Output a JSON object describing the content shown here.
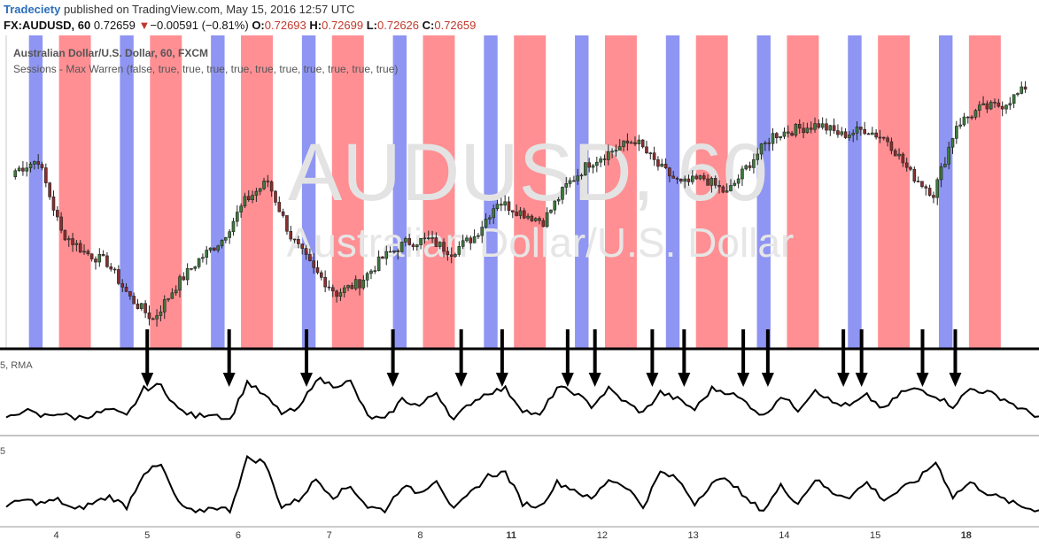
{
  "header": {
    "brand": "Tradeciety",
    "published_text": "published on TradingView.com, May 15, 2016 12:57 UTC",
    "symbol": "FX:AUDUSD, 60",
    "last": "0.72659",
    "change": "−0.00591 (−0.81%)",
    "open_label": "O:",
    "open": "0.72693",
    "high_label": "H:",
    "high": "0.72699",
    "low_label": "L:",
    "low": "0.72626",
    "close_label": "C:",
    "close": "0.72659"
  },
  "chart_data": [
    {
      "type": "candlestick",
      "title": "Australian Dollar/U.S. Dollar, 60, FXCM",
      "subtitle": "Sessions - Max Warren (false, true, true, true, true, true, true, true, true, true, true)",
      "watermark_symbol": "AUDUSD, 60",
      "watermark_name": "Australian Dollar/U.S. Dollar",
      "ylim": [
        0.723,
        0.741
      ],
      "x_ticks": [
        "4",
        "5",
        "6",
        "7",
        "8",
        "11",
        "12",
        "13",
        "14",
        "15",
        "18"
      ],
      "x_tick_pos": [
        0.3,
        1.3,
        2.3,
        3.3,
        4.3,
        5.3,
        6.3,
        7.3,
        8.3,
        9.3,
        10.3
      ],
      "xlim": [
        -0.25,
        11.1
      ],
      "session_colors": {
        "asia": "#7a82f0",
        "london": "#ff7b80"
      },
      "sessions_per_day": [
        {
          "type": "asia",
          "start": 0.0,
          "end": 0.15
        },
        {
          "type": "london",
          "start": 0.33,
          "end": 0.68
        }
      ],
      "anchor_closes": [
        0.7345,
        0.7352,
        0.7305,
        0.7292,
        0.7285,
        0.7262,
        0.7248,
        0.727,
        0.7287,
        0.73,
        0.7325,
        0.7338,
        0.7302,
        0.728,
        0.7265,
        0.7272,
        0.7288,
        0.7298,
        0.73,
        0.7292,
        0.7302,
        0.7325,
        0.7318,
        0.7312,
        0.7335,
        0.735,
        0.7358,
        0.7365,
        0.7348,
        0.7336,
        0.734,
        0.733,
        0.735,
        0.7368,
        0.7372,
        0.7375,
        0.7368,
        0.7372,
        0.7365,
        0.7343,
        0.733,
        0.7375,
        0.7385,
        0.7388,
        0.7398
      ],
      "arrow_positions": [
        1.3,
        2.2,
        3.05,
        4.0,
        4.75,
        5.2,
        5.92,
        6.22,
        6.85,
        7.2,
        7.85,
        8.12,
        8.95,
        9.15,
        9.82,
        10.18
      ]
    },
    {
      "type": "line",
      "title": "5, RMA",
      "anchors": [
        0.15,
        0.3,
        0.2,
        0.25,
        0.18,
        0.22,
        0.3,
        0.2,
        0.6,
        0.65,
        0.3,
        0.2,
        0.25,
        0.15,
        0.7,
        0.5,
        0.25,
        0.3,
        0.75,
        0.65,
        0.7,
        0.2,
        0.15,
        0.45,
        0.35,
        0.55,
        0.15,
        0.4,
        0.55,
        0.6,
        0.3,
        0.2,
        0.62,
        0.55,
        0.35,
        0.6,
        0.4,
        0.25,
        0.55,
        0.45,
        0.3,
        0.6,
        0.55,
        0.4,
        0.2,
        0.5,
        0.3,
        0.6,
        0.4,
        0.35,
        0.5,
        0.3,
        0.55,
        0.6,
        0.5,
        0.35,
        0.6,
        0.55,
        0.45,
        0.3,
        0.2
      ]
    },
    {
      "type": "line",
      "title": "5",
      "anchors": [
        0.2,
        0.3,
        0.25,
        0.3,
        0.15,
        0.25,
        0.35,
        0.2,
        0.7,
        0.8,
        0.25,
        0.1,
        0.2,
        0.15,
        0.9,
        0.85,
        0.2,
        0.3,
        0.6,
        0.35,
        0.5,
        0.2,
        0.15,
        0.5,
        0.4,
        0.6,
        0.15,
        0.4,
        0.65,
        0.7,
        0.25,
        0.2,
        0.55,
        0.45,
        0.3,
        0.6,
        0.5,
        0.2,
        0.7,
        0.6,
        0.25,
        0.55,
        0.6,
        0.3,
        0.15,
        0.5,
        0.25,
        0.6,
        0.4,
        0.35,
        0.55,
        0.3,
        0.45,
        0.6,
        0.85,
        0.35,
        0.55,
        0.4,
        0.3,
        0.2,
        0.15
      ]
    }
  ]
}
